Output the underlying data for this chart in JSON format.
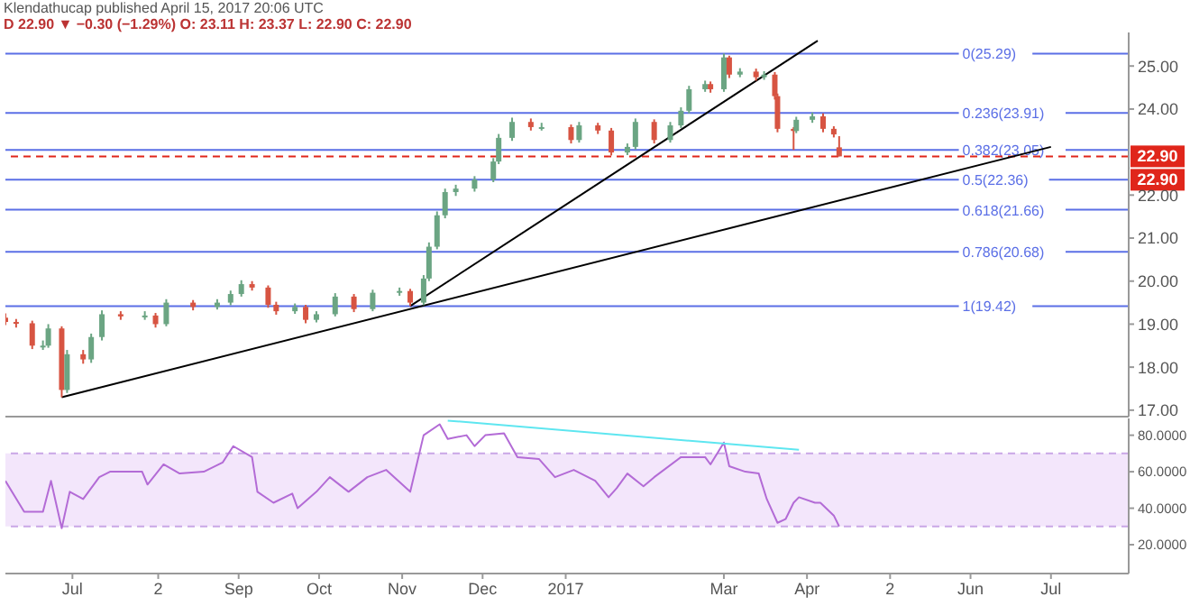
{
  "chart_data": [
    {
      "type": "candlestick",
      "title": "Klendathucap published April 15, 2017 20:06 UTC",
      "subtitle": "D 22.90 ▼ −0.30 (−1.29%) O: 23.11 H: 23.37 L: 22.90 C: 22.90",
      "x": [
        "2016-06-06",
        "2016-06-10",
        "2016-06-16",
        "2016-06-20",
        "2016-06-22",
        "2016-06-27",
        "2016-06-29",
        "2016-07-05",
        "2016-07-08",
        "2016-07-12",
        "2016-07-19",
        "2016-07-28",
        "2016-08-01",
        "2016-08-05",
        "2016-08-15",
        "2016-08-24",
        "2016-08-29",
        "2016-09-02",
        "2016-09-06",
        "2016-09-12",
        "2016-09-15",
        "2016-09-22",
        "2016-09-26",
        "2016-09-30",
        "2016-10-07",
        "2016-10-14",
        "2016-10-21",
        "2016-10-31",
        "2016-11-04",
        "2016-11-09",
        "2016-11-11",
        "2016-11-14",
        "2016-11-17",
        "2016-11-21",
        "2016-11-28",
        "2016-12-05",
        "2016-12-07",
        "2016-12-12",
        "2016-12-19",
        "2016-12-23",
        "2017-01-03",
        "2017-01-06",
        "2017-01-13",
        "2017-01-18",
        "2017-01-24",
        "2017-01-27",
        "2017-02-03",
        "2017-02-09",
        "2017-02-13",
        "2017-02-16",
        "2017-02-22",
        "2017-02-24",
        "2017-03-01",
        "2017-03-03",
        "2017-03-07",
        "2017-03-13",
        "2017-03-16",
        "2017-03-20",
        "2017-03-21",
        "2017-03-27",
        "2017-03-28",
        "2017-04-03",
        "2017-04-07",
        "2017-04-11",
        "2017-04-13"
      ],
      "ohlc": [
        [
          19.15,
          19.25,
          18.98,
          19.05
        ],
        [
          19.05,
          19.12,
          18.92,
          19.02
        ],
        [
          19.02,
          19.08,
          18.42,
          18.5
        ],
        [
          18.5,
          18.62,
          18.4,
          18.5
        ],
        [
          18.5,
          19.0,
          18.45,
          18.9
        ],
        [
          18.9,
          18.95,
          17.3,
          17.47
        ],
        [
          17.47,
          18.4,
          17.4,
          18.3
        ],
        [
          18.3,
          18.4,
          18.08,
          18.18
        ],
        [
          18.18,
          18.78,
          18.1,
          18.7
        ],
        [
          18.7,
          19.32,
          18.62,
          19.23
        ],
        [
          19.23,
          19.3,
          19.1,
          19.18
        ],
        [
          19.18,
          19.3,
          19.1,
          19.2
        ],
        [
          19.2,
          19.26,
          18.92,
          19.0
        ],
        [
          19.0,
          19.58,
          18.95,
          19.5
        ],
        [
          19.5,
          19.56,
          19.32,
          19.4
        ],
        [
          19.4,
          19.58,
          19.34,
          19.5
        ],
        [
          19.5,
          19.78,
          19.44,
          19.7
        ],
        [
          19.7,
          20.02,
          19.64,
          19.93
        ],
        [
          19.93,
          20.0,
          19.78,
          19.85
        ],
        [
          19.85,
          19.9,
          19.38,
          19.45
        ],
        [
          19.45,
          19.52,
          19.22,
          19.3
        ],
        [
          19.3,
          19.48,
          19.24,
          19.4
        ],
        [
          19.4,
          19.45,
          19.02,
          19.1
        ],
        [
          19.1,
          19.3,
          19.04,
          19.23
        ],
        [
          19.23,
          19.72,
          19.18,
          19.64
        ],
        [
          19.64,
          19.7,
          19.28,
          19.35
        ],
        [
          19.35,
          19.8,
          19.3,
          19.73
        ],
        [
          19.73,
          19.85,
          19.66,
          19.77
        ],
        [
          19.77,
          19.82,
          19.42,
          19.5
        ],
        [
          19.5,
          20.14,
          19.44,
          20.06
        ],
        [
          20.06,
          20.9,
          20.0,
          20.8
        ],
        [
          20.8,
          21.62,
          20.74,
          21.53
        ],
        [
          21.53,
          22.15,
          21.46,
          22.07
        ],
        [
          22.07,
          22.24,
          21.98,
          22.15
        ],
        [
          22.15,
          22.44,
          22.08,
          22.36
        ],
        [
          22.36,
          22.86,
          22.3,
          22.78
        ],
        [
          22.78,
          23.42,
          22.72,
          23.33
        ],
        [
          23.33,
          23.8,
          23.26,
          23.7
        ],
        [
          23.7,
          23.78,
          23.5,
          23.58
        ],
        [
          23.58,
          23.68,
          23.5,
          23.58
        ],
        [
          23.58,
          23.64,
          23.2,
          23.28
        ],
        [
          23.28,
          23.7,
          23.22,
          23.62
        ],
        [
          23.62,
          23.68,
          23.42,
          23.5
        ],
        [
          23.5,
          23.56,
          22.92,
          22.99
        ],
        [
          22.99,
          23.2,
          22.93,
          23.12
        ],
        [
          23.12,
          23.78,
          23.06,
          23.7
        ],
        [
          23.7,
          23.76,
          23.2,
          23.28
        ],
        [
          23.28,
          23.7,
          23.22,
          23.62
        ],
        [
          23.62,
          24.04,
          23.56,
          23.96
        ],
        [
          23.96,
          24.54,
          23.9,
          24.46
        ],
        [
          24.46,
          24.66,
          24.4,
          24.58
        ],
        [
          24.58,
          24.64,
          24.38,
          24.46
        ],
        [
          24.46,
          25.29,
          24.4,
          25.2
        ],
        [
          25.2,
          25.24,
          24.72,
          24.8
        ],
        [
          24.8,
          24.95,
          24.74,
          24.87
        ],
        [
          24.87,
          24.94,
          24.66,
          24.74
        ],
        [
          24.74,
          24.88,
          24.68,
          24.8
        ],
        [
          24.8,
          24.86,
          24.22,
          24.3
        ],
        [
          24.3,
          24.36,
          23.46,
          23.54
        ],
        [
          23.54,
          23.58,
          23.05,
          23.49
        ],
        [
          23.49,
          23.82,
          23.44,
          23.75
        ],
        [
          23.75,
          23.92,
          23.68,
          23.83
        ],
        [
          23.83,
          23.9,
          23.46,
          23.54
        ],
        [
          23.54,
          23.6,
          23.34,
          23.41
        ],
        [
          23.11,
          23.37,
          22.9,
          22.9
        ]
      ],
      "series": [
        {
          "type": "line",
          "color": "#000000",
          "x": [
            "2016-06-27",
            "2017-07-01"
          ],
          "values": [
            17.3,
            23.12
          ]
        },
        {
          "type": "line",
          "color": "#000000",
          "x": [
            "2016-11-04",
            "2017-04-05"
          ],
          "values": [
            19.42,
            25.59
          ]
        }
      ],
      "xlim": [
        "2016-06-06",
        "2017-07-30"
      ],
      "ylim": [
        16.85,
        25.78
      ],
      "yticks": [
        {
          "value": 17,
          "label": "17.00"
        },
        {
          "value": 18,
          "label": "18.00"
        },
        {
          "value": 19,
          "label": "19.00"
        },
        {
          "value": 20,
          "label": "20.00"
        },
        {
          "value": 21,
          "label": "21.00"
        },
        {
          "value": 22,
          "label": "22.00"
        },
        {
          "value": 24,
          "label": "24.00"
        },
        {
          "value": 25,
          "label": "25.00"
        }
      ],
      "tick_labels": "y",
      "ref_lines": [
        {
          "axis": "y",
          "value": 25.29,
          "label": "0(25.29)",
          "color": "#5b6fe6"
        },
        {
          "axis": "y",
          "value": 23.91,
          "label": "0.236(23.91)",
          "color": "#5b6fe6"
        },
        {
          "axis": "y",
          "value": 23.05,
          "label": "0.382(23.05)",
          "color": "#5b6fe6"
        },
        {
          "axis": "y",
          "value": 22.36,
          "label": "0.5(22.36)",
          "color": "#5b6fe6"
        },
        {
          "axis": "y",
          "value": 21.66,
          "label": "0.618(21.66)",
          "color": "#5b6fe6"
        },
        {
          "axis": "y",
          "value": 20.68,
          "label": "0.786(20.68)",
          "color": "#5b6fe6"
        },
        {
          "axis": "y",
          "value": 19.42,
          "label": "1(19.42)",
          "color": "#5b6fe6"
        },
        {
          "axis": "y",
          "value": 22.9,
          "label": "22.90",
          "color": "#e0261b",
          "line_style": "dashed"
        }
      ],
      "annotations": [
        "22.90"
      ]
    },
    {
      "type": "line",
      "series": [
        {
          "color": "#b36bd6",
          "x": [
            "2016-06-06",
            "2016-06-13",
            "2016-06-15",
            "2016-06-20",
            "2016-06-23",
            "2016-06-27",
            "2016-06-30",
            "2016-07-05",
            "2016-07-11",
            "2016-07-15",
            "2016-07-27",
            "2016-07-29",
            "2016-08-04",
            "2016-08-10",
            "2016-08-19",
            "2016-08-26",
            "2016-08-30",
            "2016-09-06",
            "2016-09-08",
            "2016-09-14",
            "2016-09-21",
            "2016-09-23",
            "2016-09-30",
            "2016-10-05",
            "2016-10-12",
            "2016-10-19",
            "2016-10-26",
            "2016-11-04",
            "2016-11-09",
            "2016-11-15",
            "2016-11-18",
            "2016-11-25",
            "2016-11-28",
            "2016-12-02",
            "2016-12-09",
            "2016-12-14",
            "2016-12-22",
            "2016-12-28",
            "2017-01-04",
            "2017-01-12",
            "2017-01-17",
            "2017-01-20",
            "2017-01-24",
            "2017-01-30",
            "2017-02-03",
            "2017-02-13",
            "2017-02-22",
            "2017-02-24",
            "2017-03-01",
            "2017-03-03",
            "2017-03-09",
            "2017-03-14",
            "2017-03-17",
            "2017-03-21",
            "2017-03-24",
            "2017-03-27",
            "2017-03-29",
            "2017-04-04",
            "2017-04-06",
            "2017-04-11",
            "2017-04-13"
          ],
          "values": [
            55,
            38,
            38,
            38,
            55,
            29,
            49,
            45,
            57,
            60,
            60,
            53,
            64,
            59,
            60,
            65,
            74,
            68,
            49,
            43,
            48,
            40,
            49,
            57,
            49,
            57,
            61,
            49,
            80,
            86,
            78,
            80,
            74,
            80,
            81,
            68,
            67,
            57,
            61,
            55,
            46,
            51,
            59,
            52,
            57,
            68,
            68,
            64,
            76,
            63,
            60,
            59,
            45,
            32,
            34,
            43,
            46,
            43,
            43,
            36,
            30
          ]
        },
        {
          "color": "#5ee6f0",
          "x": [
            "2016-11-18",
            "2017-03-29"
          ],
          "values": [
            88,
            72
          ]
        }
      ],
      "xlim": [
        "2016-06-06",
        "2017-07-30"
      ],
      "ylim": [
        4.2,
        89.2
      ],
      "xticks": [
        {
          "value": "2016-07-01",
          "label": "Jul"
        },
        {
          "value": "2016-08-02",
          "label": "2"
        },
        {
          "value": "2016-09-01",
          "label": "Sep"
        },
        {
          "value": "2016-10-01",
          "label": "Oct"
        },
        {
          "value": "2016-11-01",
          "label": "Nov"
        },
        {
          "value": "2016-12-01",
          "label": "Dec"
        },
        {
          "value": "2017-01-01",
          "label": "2017"
        },
        {
          "value": "2017-03-01",
          "label": "Mar"
        },
        {
          "value": "2017-04-01",
          "label": "Apr"
        },
        {
          "value": "2017-05-02",
          "label": "2"
        },
        {
          "value": "2017-06-01",
          "label": "Jun"
        },
        {
          "value": "2017-07-01",
          "label": "Jul"
        }
      ],
      "yticks": [
        {
          "value": 20,
          "label": "20.0000"
        },
        {
          "value": 40,
          "label": "40.0000"
        },
        {
          "value": 60,
          "label": "60.0000"
        },
        {
          "value": 80,
          "label": "80.0000"
        }
      ],
      "bands": [
        {
          "axis": "y",
          "from": 30,
          "to": 70,
          "color": "#f3e6fb"
        }
      ],
      "ref_lines": [
        {
          "axis": "y",
          "value": 70,
          "color": "#c9a6e6",
          "line_style": "dashed"
        },
        {
          "axis": "y",
          "value": 30,
          "color": "#c9a6e6",
          "line_style": "dashed"
        }
      ]
    }
  ]
}
